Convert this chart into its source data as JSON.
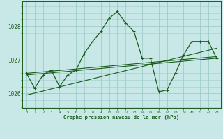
{
  "hours": [
    0,
    1,
    2,
    3,
    4,
    5,
    6,
    7,
    8,
    9,
    10,
    11,
    12,
    13,
    14,
    15,
    16,
    17,
    18,
    19,
    20,
    21,
    22,
    23
  ],
  "pressure": [
    1026.6,
    1026.15,
    1026.55,
    1026.7,
    1026.2,
    1026.55,
    1026.7,
    1027.2,
    1027.55,
    1027.85,
    1028.25,
    1028.45,
    1028.1,
    1027.85,
    1027.05,
    1027.05,
    1026.05,
    1026.1,
    1026.6,
    1027.15,
    1027.55,
    1027.55,
    1027.55,
    1027.05
  ],
  "trend_lines": [
    {
      "x": [
        0,
        23
      ],
      "y": [
        1026.55,
        1027.05
      ]
    },
    {
      "x": [
        0,
        23
      ],
      "y": [
        1026.6,
        1027.1
      ]
    },
    {
      "x": [
        0,
        23
      ],
      "y": [
        1025.95,
        1027.35
      ]
    }
  ],
  "bg_color": "#c8e8e8",
  "line_color": "#1a5c1a",
  "grid_color": "#a0cccc",
  "title": "Graphe pression niveau de la mer (hPa)",
  "yticks": [
    1026,
    1027,
    1028
  ],
  "xlim": [
    -0.5,
    23.5
  ],
  "ylim": [
    1025.55,
    1028.75
  ],
  "fig_bg": "#c8e8e8"
}
